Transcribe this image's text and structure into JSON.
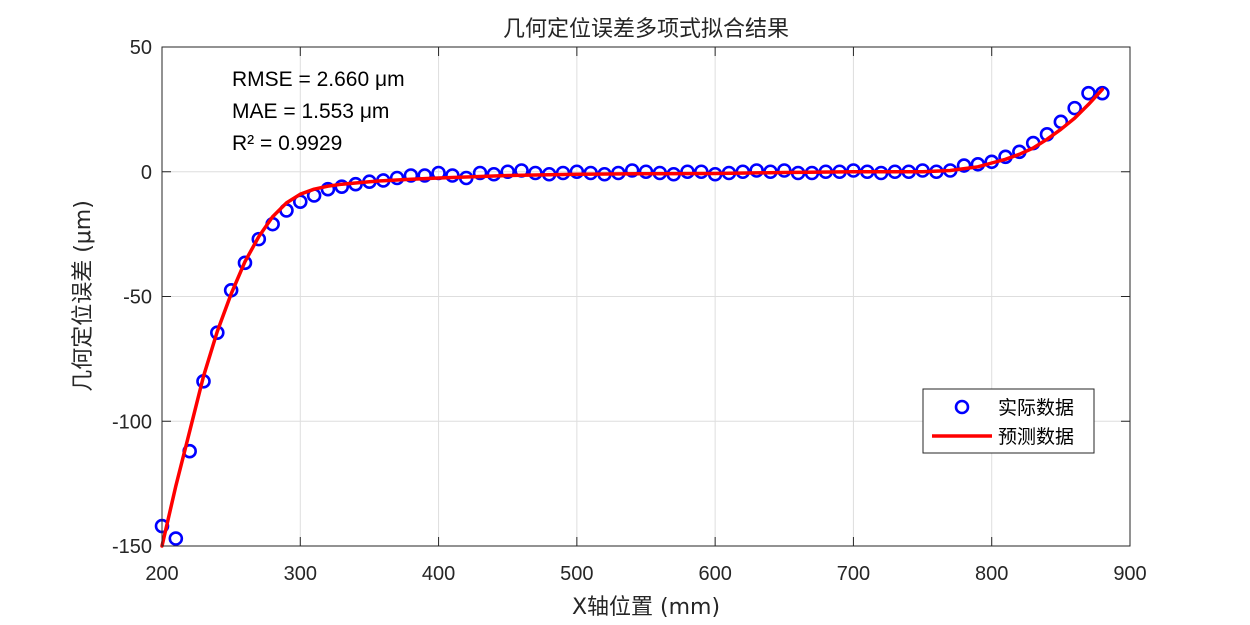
{
  "chart_data": {
    "type": "scatter",
    "title": "几何定位误差多项式拟合结果",
    "xlabel": "X轴位置 (mm)",
    "ylabel": "几何定位误差 (μm)",
    "xlim": [
      200,
      900
    ],
    "ylim": [
      -150,
      50
    ],
    "xticks": [
      200,
      300,
      400,
      500,
      600,
      700,
      800,
      900
    ],
    "yticks": [
      -150,
      -100,
      -50,
      0,
      50
    ],
    "grid": true,
    "legend_position": "bottom-right",
    "annotations": [
      "RMSE = 2.660 μm",
      "MAE = 1.553 μm",
      "R² = 0.9929"
    ],
    "series": [
      {
        "name": "实际数据",
        "kind": "markers",
        "marker": "circle",
        "color": "#0000ff",
        "x": [
          200,
          210,
          220,
          230,
          240,
          250,
          260,
          270,
          280,
          290,
          300,
          310,
          320,
          330,
          340,
          350,
          360,
          370,
          380,
          390,
          400,
          410,
          420,
          430,
          440,
          450,
          460,
          470,
          480,
          490,
          500,
          510,
          520,
          530,
          540,
          550,
          560,
          570,
          580,
          590,
          600,
          610,
          620,
          630,
          640,
          650,
          660,
          670,
          680,
          690,
          700,
          710,
          720,
          730,
          740,
          750,
          760,
          770,
          780,
          790,
          800,
          810,
          820,
          830,
          840,
          850,
          860,
          870,
          880
        ],
        "y": [
          -142,
          -147,
          -112,
          -84,
          -64.5,
          -47.5,
          -36.5,
          -27,
          -21,
          -15.5,
          -12,
          -9.5,
          -7,
          -6,
          -5,
          -4,
          -3.5,
          -2.5,
          -1.5,
          -1.5,
          -0.5,
          -1.5,
          -2.5,
          -0.5,
          -1,
          0,
          0.5,
          -0.5,
          -1,
          -0.5,
          0,
          -0.5,
          -1,
          -0.5,
          0.5,
          0,
          -0.5,
          -1,
          0,
          0,
          -1,
          -0.5,
          0,
          0.5,
          0,
          0.5,
          -0.5,
          -0.5,
          0,
          0,
          0.5,
          0,
          -0.5,
          0,
          0,
          0.5,
          0,
          0.5,
          2.5,
          3,
          4,
          6,
          8,
          11.5,
          15,
          20,
          25.5,
          31.5,
          31.5
        ]
      },
      {
        "name": "预测数据",
        "kind": "line",
        "color": "#ff0000",
        "x": [
          200,
          210,
          220,
          230,
          240,
          250,
          260,
          270,
          280,
          290,
          300,
          310,
          320,
          330,
          340,
          350,
          360,
          370,
          380,
          400,
          450,
          500,
          550,
          600,
          650,
          700,
          750,
          770,
          790,
          800,
          810,
          820,
          830,
          840,
          850,
          860,
          870,
          880
        ],
        "y": [
          -150,
          -126,
          -104,
          -82,
          -64,
          -49,
          -36,
          -26,
          -18,
          -12.5,
          -9,
          -7,
          -5.8,
          -5,
          -4.5,
          -4,
          -3.6,
          -3.3,
          -3,
          -2.5,
          -1.5,
          -1,
          -0.8,
          -0.7,
          -0.3,
          0,
          0,
          0.5,
          2,
          3.5,
          5,
          7,
          9.5,
          13,
          17,
          21.5,
          27,
          33
        ]
      }
    ]
  }
}
